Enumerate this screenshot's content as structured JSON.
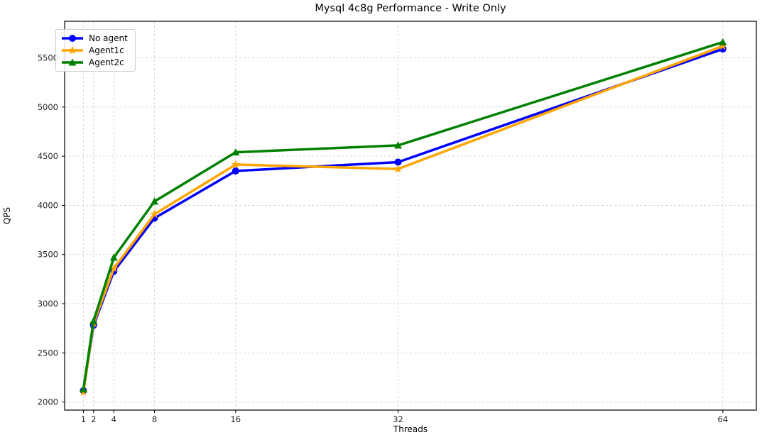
{
  "title": "Mysql 4c8g Performance - Write Only",
  "chart_data": {
    "type": "line",
    "title": "Mysql 4c8g Performance - Write Only",
    "xlabel": "Threads",
    "ylabel": "QPS",
    "x": [
      1,
      2,
      4,
      8,
      16,
      32,
      64
    ],
    "x_ticks": [
      1,
      2,
      4,
      8,
      16,
      32,
      64
    ],
    "y_ticks": [
      2000,
      2500,
      3000,
      3500,
      4000,
      4500,
      5000,
      5500
    ],
    "xlim": [
      -0.85,
      67.3
    ],
    "ylim": [
      1918,
      5872
    ],
    "grid": true,
    "grid_style": "dashed",
    "legend_position": "upper left",
    "series": [
      {
        "name": "No agent",
        "color": "#0000ff",
        "marker": "circle",
        "values": [
          2115,
          2780,
          3330,
          3870,
          4350,
          4440,
          5590
        ]
      },
      {
        "name": "Agent1c",
        "color": "#ffa500",
        "marker": "star",
        "values": [
          2100,
          2800,
          3360,
          3910,
          4415,
          4370,
          5620
        ]
      },
      {
        "name": "Agent2c",
        "color": "#008000",
        "marker": "triangle",
        "values": [
          2130,
          2825,
          3470,
          4040,
          4540,
          4610,
          5660
        ]
      }
    ],
    "colors": {
      "grid": "#cccccc",
      "spine": "#000000",
      "text": "#262626"
    }
  }
}
